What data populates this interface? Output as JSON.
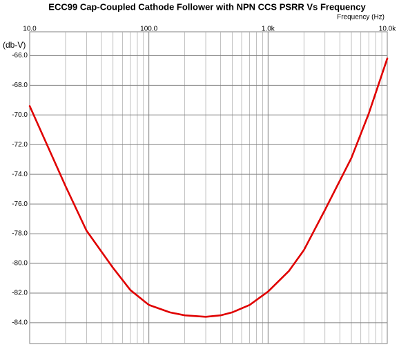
{
  "chart_data": {
    "type": "line",
    "title": "ECC99 Cap-Coupled Cathode Follower with NPN CCS PSRR Vs Frequency",
    "x_label": "Frequency  (Hz)",
    "y_label": "(db-V)",
    "x_log_scale": true,
    "grid": true,
    "xlim": [
      10,
      10000
    ],
    "xticks": [
      {
        "value": 10,
        "label": "10.0"
      },
      {
        "value": 100,
        "label": "100.0"
      },
      {
        "value": 1000,
        "label": "1.0k"
      },
      {
        "value": 10000,
        "label": "10.0k"
      }
    ],
    "x_minor_ticks": [
      20,
      30,
      40,
      50,
      60,
      70,
      80,
      90,
      200,
      300,
      400,
      500,
      600,
      700,
      800,
      900,
      2000,
      3000,
      4000,
      5000,
      6000,
      7000,
      8000,
      9000
    ],
    "ylim": [
      -85.4,
      -64.4
    ],
    "yticks": [
      {
        "value": -66,
        "label": "-66.0"
      },
      {
        "value": -68,
        "label": "-68.0"
      },
      {
        "value": -70,
        "label": "-70.0"
      },
      {
        "value": -72,
        "label": "-72.0"
      },
      {
        "value": -74,
        "label": "-74.0"
      },
      {
        "value": -76,
        "label": "-76.0"
      },
      {
        "value": -78,
        "label": "-78.0"
      },
      {
        "value": -80,
        "label": "-80.0"
      },
      {
        "value": -82,
        "label": "-82.0"
      },
      {
        "value": -84,
        "label": "-84.0"
      }
    ],
    "x": [
      10,
      20,
      30,
      50,
      70,
      100,
      150,
      200,
      300,
      400,
      500,
      700,
      1000,
      1500,
      2000,
      3000,
      5000,
      7000,
      10000
    ],
    "series": [
      {
        "color": "#e00000",
        "values": [
          -69.4,
          -74.8,
          -77.8,
          -80.3,
          -81.8,
          -82.8,
          -83.3,
          -83.5,
          -83.6,
          -83.5,
          -83.3,
          -82.8,
          -81.9,
          -80.5,
          -79.1,
          -76.4,
          -72.9,
          -69.9,
          -66.2
        ]
      }
    ]
  }
}
